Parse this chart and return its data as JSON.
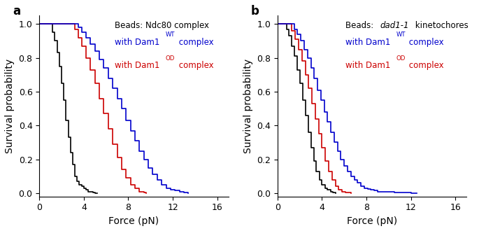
{
  "panel_a": {
    "label": "a",
    "black": {
      "x": [
        0.0,
        1.0,
        1.2,
        1.4,
        1.6,
        1.8,
        2.0,
        2.2,
        2.4,
        2.6,
        2.8,
        3.0,
        3.2,
        3.4,
        3.6,
        3.8,
        4.0,
        4.2,
        4.4,
        4.6,
        4.8,
        5.0,
        5.2
      ],
      "y": [
        1.0,
        1.0,
        0.95,
        0.9,
        0.83,
        0.75,
        0.65,
        0.55,
        0.43,
        0.33,
        0.24,
        0.17,
        0.1,
        0.07,
        0.05,
        0.04,
        0.03,
        0.02,
        0.01,
        0.01,
        0.005,
        0.0,
        0.0
      ]
    },
    "red": {
      "x": [
        0.0,
        3.0,
        3.2,
        3.5,
        3.8,
        4.2,
        4.6,
        5.0,
        5.4,
        5.8,
        6.2,
        6.6,
        7.0,
        7.4,
        7.8,
        8.2,
        8.6,
        9.0,
        9.4,
        9.6
      ],
      "y": [
        1.0,
        1.0,
        0.97,
        0.92,
        0.87,
        0.8,
        0.73,
        0.65,
        0.56,
        0.47,
        0.38,
        0.29,
        0.21,
        0.14,
        0.09,
        0.05,
        0.03,
        0.01,
        0.005,
        0.0
      ]
    },
    "blue": {
      "x": [
        0.0,
        3.2,
        3.5,
        3.8,
        4.2,
        4.6,
        5.0,
        5.4,
        5.8,
        6.2,
        6.6,
        7.0,
        7.4,
        7.8,
        8.2,
        8.6,
        9.0,
        9.4,
        9.8,
        10.2,
        10.6,
        11.0,
        11.4,
        11.8,
        12.2,
        12.6,
        13.0,
        13.4
      ],
      "y": [
        1.0,
        1.0,
        0.98,
        0.95,
        0.92,
        0.88,
        0.84,
        0.79,
        0.74,
        0.68,
        0.62,
        0.56,
        0.5,
        0.43,
        0.37,
        0.31,
        0.25,
        0.2,
        0.15,
        0.11,
        0.08,
        0.05,
        0.03,
        0.02,
        0.015,
        0.01,
        0.005,
        0.0
      ]
    }
  },
  "panel_b": {
    "label": "b",
    "black": {
      "x": [
        0.0,
        0.5,
        0.8,
        1.0,
        1.3,
        1.5,
        1.8,
        2.0,
        2.3,
        2.5,
        2.8,
        3.0,
        3.3,
        3.5,
        3.8,
        4.0,
        4.3,
        4.5,
        4.8,
        5.0,
        5.2
      ],
      "y": [
        1.0,
        1.0,
        0.97,
        0.93,
        0.87,
        0.81,
        0.73,
        0.65,
        0.55,
        0.46,
        0.36,
        0.27,
        0.19,
        0.13,
        0.08,
        0.05,
        0.03,
        0.02,
        0.01,
        0.005,
        0.0
      ]
    },
    "red": {
      "x": [
        0.0,
        1.0,
        1.3,
        1.6,
        1.9,
        2.2,
        2.5,
        2.8,
        3.1,
        3.4,
        3.7,
        4.0,
        4.3,
        4.6,
        4.9,
        5.2,
        5.5,
        5.8,
        6.1,
        6.4,
        6.6
      ],
      "y": [
        1.0,
        1.0,
        0.96,
        0.91,
        0.85,
        0.78,
        0.7,
        0.62,
        0.53,
        0.44,
        0.35,
        0.27,
        0.19,
        0.13,
        0.08,
        0.04,
        0.02,
        0.01,
        0.005,
        0.002,
        0.0
      ]
    },
    "blue": {
      "x": [
        0.0,
        1.2,
        1.5,
        1.8,
        2.1,
        2.4,
        2.7,
        3.0,
        3.3,
        3.6,
        3.9,
        4.2,
        4.5,
        4.8,
        5.1,
        5.4,
        5.7,
        6.0,
        6.3,
        6.6,
        6.9,
        7.2,
        7.5,
        7.8,
        8.1,
        8.4,
        8.7,
        9.0,
        9.5,
        10.0,
        10.5,
        11.0,
        11.5,
        12.0,
        12.5
      ],
      "y": [
        1.0,
        1.0,
        0.97,
        0.94,
        0.9,
        0.85,
        0.8,
        0.74,
        0.68,
        0.61,
        0.55,
        0.48,
        0.42,
        0.36,
        0.3,
        0.25,
        0.2,
        0.16,
        0.13,
        0.1,
        0.08,
        0.06,
        0.04,
        0.03,
        0.025,
        0.02,
        0.015,
        0.01,
        0.008,
        0.006,
        0.004,
        0.003,
        0.002,
        0.001,
        0.0
      ]
    }
  },
  "xlabel": "Force (pN)",
  "ylabel": "Survival probability",
  "xlim": [
    0,
    17
  ],
  "ylim": [
    -0.02,
    1.05
  ],
  "xticks": [
    0,
    4,
    8,
    12,
    16
  ],
  "yticks": [
    0.0,
    0.2,
    0.4,
    0.6,
    0.8,
    1.0
  ],
  "colors": {
    "black": "#000000",
    "blue": "#0000cc",
    "red": "#cc0000"
  }
}
